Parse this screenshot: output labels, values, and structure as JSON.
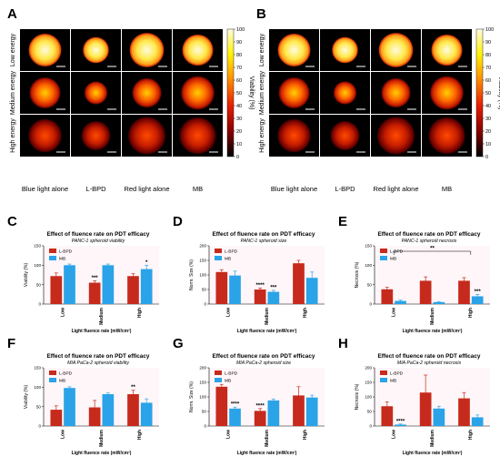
{
  "panels": {
    "A": "A",
    "B": "B",
    "C": "C",
    "D": "D",
    "E": "E",
    "F": "F",
    "G": "G",
    "H": "H"
  },
  "images": {
    "row_labels": [
      "Low energy",
      "Medium energy",
      "High energy"
    ],
    "col_labels": [
      "Blue light alone",
      "L-BPD",
      "Red light alone",
      "MB"
    ],
    "colorbar": {
      "label": "Viability (%)",
      "ticks": [
        "100",
        "90",
        "80",
        "70",
        "60",
        "50",
        "40",
        "30",
        "20",
        "10",
        "0"
      ],
      "colors": [
        "#fffbe0",
        "#fff200",
        "#ff8a00",
        "#e81e00",
        "#8a0000",
        "#000000"
      ]
    }
  },
  "colors": {
    "lbpd": "#c62a1c",
    "mb": "#2aa3e8",
    "bg_tint": "#f5b3c8"
  },
  "chart_data": [
    {
      "panel": "C",
      "type": "bar",
      "title": "Effect of fluence rate on PDT efficacy",
      "subtitle": "PANC-1 spheroid viability",
      "xlabel": "Light fluence rate (mW/cm²)",
      "ylabel": "Viability (%)",
      "categories": [
        "Low",
        "Medium",
        "High"
      ],
      "ylim": [
        0,
        150
      ],
      "yticks": [
        "0",
        "50",
        "100",
        "150"
      ],
      "legend": "top-left",
      "series": [
        {
          "name": "L-BPD",
          "values": [
            72,
            55,
            72
          ],
          "errors": [
            8,
            5,
            6
          ],
          "sig": [
            "",
            "***",
            ""
          ]
        },
        {
          "name": "MB",
          "values": [
            100,
            100,
            90
          ],
          "errors": [
            3,
            3,
            10
          ],
          "sig": [
            "",
            "",
            "*"
          ]
        }
      ]
    },
    {
      "panel": "D",
      "type": "bar",
      "title": "Effect of fluence rate on PDT efficacy",
      "subtitle": "PANC-1 spheroid size",
      "xlabel": "Light fluence rate (mW/cm²)",
      "ylabel": "Norm. Size (%)",
      "categories": [
        "Low",
        "Medium",
        "High"
      ],
      "ylim": [
        0,
        200
      ],
      "yticks": [
        "0",
        "50",
        "100",
        "150",
        "200"
      ],
      "legend": "top-left",
      "series": [
        {
          "name": "L-BPD",
          "values": [
            110,
            50,
            140
          ],
          "errors": [
            8,
            5,
            10
          ],
          "sig": [
            "",
            "****",
            ""
          ]
        },
        {
          "name": "MB",
          "values": [
            98,
            42,
            90
          ],
          "errors": [
            15,
            5,
            20
          ],
          "sig": [
            "",
            "***",
            ""
          ]
        }
      ]
    },
    {
      "panel": "E",
      "type": "bar",
      "title": "Effect of fluence rate on PDT efficacy",
      "subtitle": "PANC-1 spheroid necrosis",
      "xlabel": "Light fluence rate (mW/cm²)",
      "ylabel": "Necrosis (%)",
      "categories": [
        "Low",
        "Medium",
        "High"
      ],
      "ylim": [
        0,
        150
      ],
      "yticks": [
        "0",
        "50",
        "100",
        "150"
      ],
      "legend": "top-left",
      "brackets": [
        {
          "from": 0,
          "to": 2,
          "label": "**"
        }
      ],
      "series": [
        {
          "name": "L-BPD",
          "values": [
            38,
            60,
            60
          ],
          "errors": [
            5,
            10,
            8
          ],
          "sig": [
            "",
            "",
            ""
          ]
        },
        {
          "name": "MB",
          "values": [
            8,
            5,
            20
          ],
          "errors": [
            2,
            1,
            5
          ],
          "sig": [
            "",
            "",
            "***"
          ]
        }
      ]
    },
    {
      "panel": "F",
      "type": "bar",
      "title": "Effect of fluence rate on PDT efficacy",
      "subtitle": "MIA PaCa-2 spheroid viability",
      "xlabel": "Light fluence rate (mW/cm²)",
      "ylabel": "Viability (%)",
      "categories": [
        "Low",
        "Medium",
        "High"
      ],
      "ylim": [
        0,
        150
      ],
      "yticks": [
        "0",
        "50",
        "100",
        "150"
      ],
      "legend": "top-left",
      "series": [
        {
          "name": "L-BPD",
          "values": [
            42,
            48,
            82
          ],
          "errors": [
            10,
            18,
            10
          ],
          "sig": [
            "",
            "",
            "**"
          ]
        },
        {
          "name": "MB",
          "values": [
            98,
            82,
            60
          ],
          "errors": [
            3,
            3,
            10
          ],
          "sig": [
            "",
            "",
            ""
          ]
        }
      ]
    },
    {
      "panel": "G",
      "type": "bar",
      "title": "Effect of fluence rate on PDT efficacy",
      "subtitle": "MIA PaCa-2 spheroid size",
      "xlabel": "Light fluence rate (mW/cm²)",
      "ylabel": "Norm. Size (%)",
      "categories": [
        "Low",
        "Medium",
        "High"
      ],
      "ylim": [
        0,
        200
      ],
      "yticks": [
        "0",
        "50",
        "100",
        "150",
        "200"
      ],
      "legend": "top-left",
      "series": [
        {
          "name": "L-BPD",
          "values": [
            135,
            52,
            105
          ],
          "errors": [
            8,
            8,
            30
          ],
          "sig": [
            "",
            "****",
            ""
          ]
        },
        {
          "name": "MB",
          "values": [
            60,
            88,
            98
          ],
          "errors": [
            5,
            5,
            8
          ],
          "sig": [
            "****",
            "",
            ""
          ]
        }
      ]
    },
    {
      "panel": "H",
      "type": "bar",
      "title": "Effect of fluence rate on PDT efficacy",
      "subtitle": "MIA PaCa-2 spheroid necrosis",
      "xlabel": "Light fluence rate (mW/cm²)",
      "ylabel": "Necrosis (%)",
      "categories": [
        "Low",
        "Medium",
        "High"
      ],
      "ylim": [
        0,
        200
      ],
      "yticks": [
        "0",
        "50",
        "100",
        "150",
        "200"
      ],
      "legend": "top-left",
      "series": [
        {
          "name": "L-BPD",
          "values": [
            68,
            115,
            95
          ],
          "errors": [
            15,
            60,
            20
          ],
          "sig": [
            "",
            "",
            ""
          ]
        },
        {
          "name": "MB",
          "values": [
            5,
            60,
            30
          ],
          "errors": [
            2,
            8,
            8
          ],
          "sig": [
            "****",
            "",
            ""
          ]
        }
      ]
    }
  ]
}
